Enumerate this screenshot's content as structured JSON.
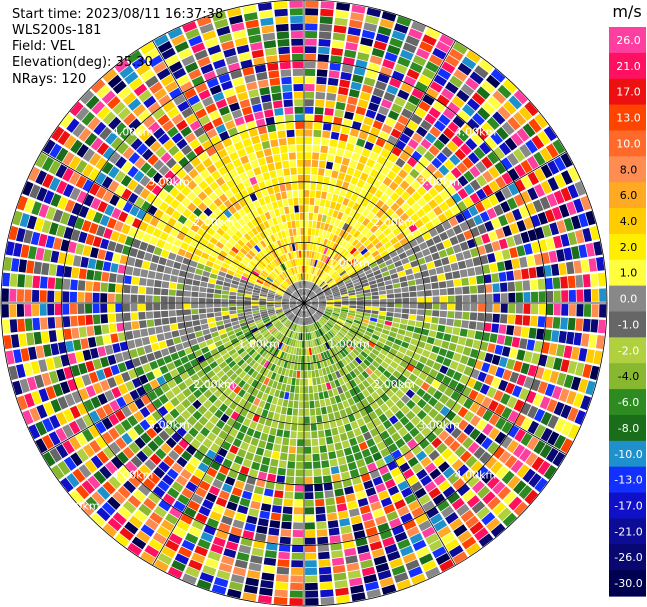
{
  "header": {
    "start_time": "Start time: 2023/08/11 16:37:38",
    "instrument": "WLS200s-181",
    "field": "Field: VEL",
    "elevation": "Elevation(deg): 35.30",
    "nrays": "NRays: 120"
  },
  "chart_data": {
    "type": "heatmap",
    "projection": "polar-ppi",
    "field": "VEL",
    "units": "m/s",
    "nrays": 120,
    "elevation_deg": 35.3,
    "range_max_km": 5.0,
    "range_rings_km": [
      1,
      2,
      3,
      4,
      5
    ],
    "ring_labels": [
      {
        "text": "1.00km",
        "az": 132
      },
      {
        "text": "1.00km",
        "az": 228
      },
      {
        "text": "1.00km",
        "az": 48
      },
      {
        "text": "2.00km",
        "az": 132
      },
      {
        "text": "2.00km",
        "az": 228
      },
      {
        "text": "2.00km",
        "az": 312
      },
      {
        "text": "3.00km",
        "az": 312
      },
      {
        "text": "3.00km",
        "az": 228
      },
      {
        "text": "3.00km",
        "az": 132
      },
      {
        "text": "3.00km",
        "az": 48
      },
      {
        "text": "4.00km",
        "az": 315
      },
      {
        "text": "4.00km",
        "az": 225
      },
      {
        "text": "4.00km",
        "az": 135
      },
      {
        "text": "4.00km",
        "az": 45
      },
      {
        "text": "5.00km",
        "az": 228
      },
      {
        "text": "2.00km",
        "az": 48
      }
    ],
    "colorbar": {
      "title": "m/s",
      "tick_labels": [
        "26.0",
        "21.0",
        "17.0",
        "13.0",
        "10.0",
        "8.0",
        "6.0",
        "4.0",
        "2.0",
        "1.0",
        "0.0",
        "-1.0",
        "-2.0",
        "-4.0",
        "-6.0",
        "-8.0",
        "-10.0",
        "-13.0",
        "-17.0",
        "-21.0",
        "-26.0",
        "-30.0"
      ],
      "colors": [
        "#ff3fa0",
        "#ff1060",
        "#ee1010",
        "#ff4400",
        "#ff6a2a",
        "#ff8c50",
        "#ffaa22",
        "#ffcc00",
        "#ffee00",
        "#ffff40",
        "#888888",
        "#666666",
        "#b0d040",
        "#88b830",
        "#2e8b22",
        "#1a6e1a",
        "#1e90cc",
        "#1430ff",
        "#1010c8",
        "#0c0c96",
        "#080870",
        "#000050"
      ]
    },
    "pattern": {
      "near_positive_sector_deg": [
        290,
        60
      ],
      "near_negative_sector_deg": [
        100,
        250
      ],
      "near_range_km": 3.0
    }
  }
}
